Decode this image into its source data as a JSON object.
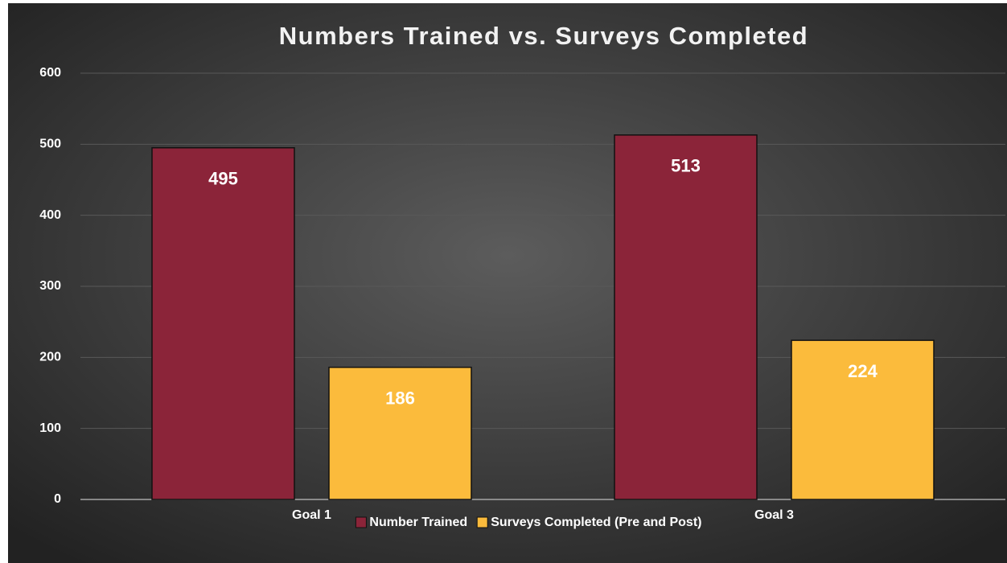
{
  "chart_data": {
    "type": "bar",
    "title": "Numbers Trained vs. Surveys Completed",
    "categories": [
      "Goal 1",
      "Goal 3"
    ],
    "series": [
      {
        "name": "Number Trained",
        "color": "#8b2439",
        "values": [
          495,
          513
        ]
      },
      {
        "name": "Surveys Completed (Pre and Post)",
        "color": "#fbbb3c",
        "values": [
          186,
          224
        ]
      }
    ],
    "ylim": [
      0,
      600
    ],
    "yticks": [
      0,
      100,
      200,
      300,
      400,
      500,
      600
    ],
    "grid": true,
    "legend": "bottom"
  }
}
